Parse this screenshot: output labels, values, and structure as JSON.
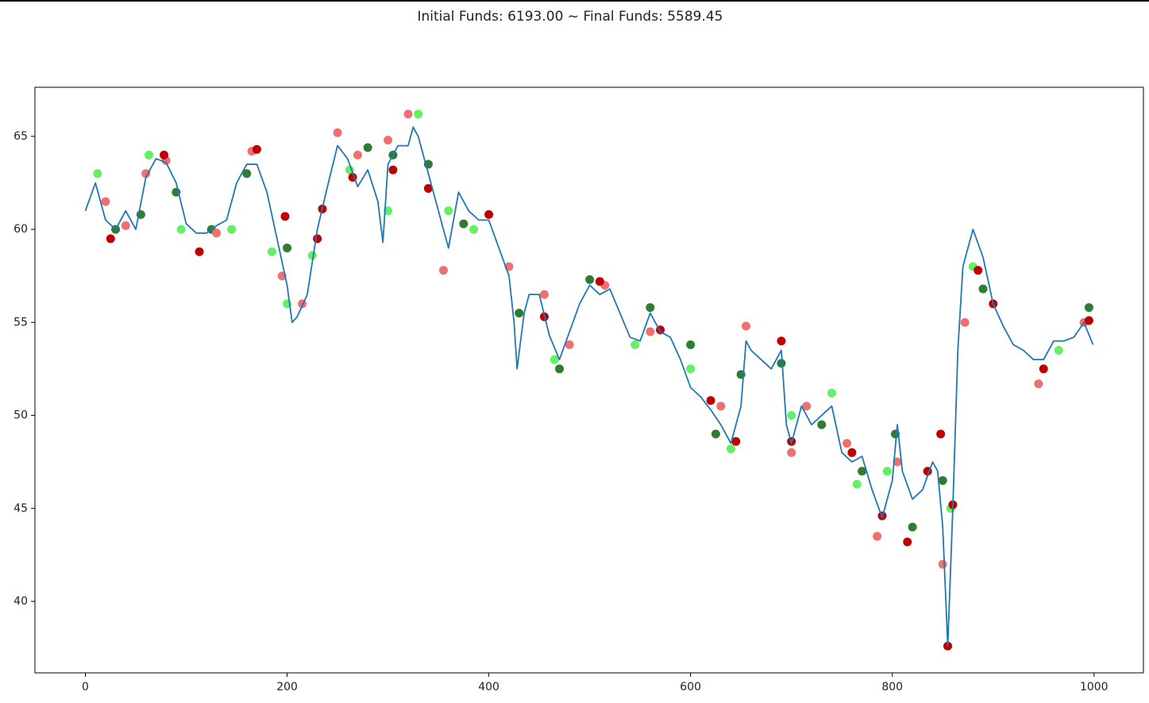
{
  "chart_data": {
    "type": "line",
    "title": "Initial Funds: 6193.00 ~ Final Funds: 5589.45",
    "xlim": [
      -50,
      1049
    ],
    "ylim": [
      36.16,
      67.64
    ],
    "xticks": [
      0,
      200,
      400,
      600,
      800,
      1000
    ],
    "yticks": [
      40,
      45,
      50,
      55,
      60,
      65
    ],
    "grid": false,
    "series": [
      {
        "type": "line",
        "color": "#1f77b4",
        "x": [
          0,
          10,
          20,
          30,
          40,
          50,
          60,
          70,
          80,
          90,
          100,
          110,
          120,
          130,
          140,
          150,
          160,
          170,
          180,
          190,
          200,
          205,
          210,
          220,
          230,
          240,
          250,
          260,
          270,
          280,
          290,
          295,
          300,
          310,
          320,
          325,
          330,
          340,
          350,
          360,
          370,
          380,
          390,
          400,
          410,
          420,
          425,
          428,
          435,
          440,
          450,
          460,
          470,
          480,
          490,
          500,
          510,
          520,
          530,
          540,
          550,
          560,
          570,
          580,
          590,
          600,
          610,
          620,
          630,
          640,
          650,
          655,
          660,
          670,
          680,
          690,
          695,
          700,
          710,
          720,
          730,
          740,
          750,
          760,
          770,
          780,
          790,
          800,
          805,
          810,
          820,
          830,
          840,
          845,
          850,
          855,
          860,
          865,
          870,
          880,
          890,
          900,
          910,
          920,
          930,
          940,
          950,
          960,
          970,
          980,
          990,
          999
        ],
        "values": [
          61.0,
          62.5,
          60.5,
          60.0,
          61.0,
          60.0,
          62.8,
          63.8,
          63.6,
          62.5,
          60.3,
          59.8,
          59.8,
          60.2,
          60.5,
          62.5,
          63.5,
          63.5,
          62.0,
          59.5,
          57.0,
          55.0,
          55.3,
          56.5,
          60.0,
          62.3,
          64.5,
          63.8,
          62.3,
          63.2,
          61.5,
          59.3,
          63.5,
          64.5,
          64.5,
          65.5,
          65.0,
          63.0,
          61.0,
          59.0,
          62.0,
          61.0,
          60.5,
          60.5,
          59.0,
          57.5,
          55.0,
          52.5,
          55.5,
          56.5,
          56.5,
          54.3,
          53.0,
          54.5,
          56.0,
          57.0,
          56.5,
          56.8,
          55.5,
          54.2,
          54.0,
          55.5,
          54.5,
          54.2,
          53.0,
          51.5,
          51.0,
          50.3,
          49.5,
          48.5,
          50.5,
          54.0,
          53.5,
          53.0,
          52.5,
          53.5,
          49.5,
          48.5,
          50.5,
          49.5,
          50.0,
          50.5,
          48.0,
          47.5,
          47.8,
          46.0,
          44.5,
          46.5,
          49.5,
          47.0,
          45.5,
          46.0,
          47.5,
          47.0,
          44.0,
          37.6,
          45.0,
          53.5,
          58.0,
          60.0,
          58.5,
          56.0,
          54.8,
          53.8,
          53.5,
          53.0,
          53.0,
          54.0,
          54.0,
          54.2,
          55.0,
          53.8
        ]
      },
      {
        "type": "scatter",
        "color": "#66ee66",
        "x": [
          12,
          63,
          95,
          145,
          185,
          200,
          225,
          262,
          300,
          330,
          360,
          385,
          465,
          545,
          600,
          640,
          700,
          740,
          765,
          795,
          858,
          880,
          965
        ],
        "values": [
          63.0,
          64.0,
          60.0,
          60.0,
          58.8,
          56.0,
          58.6,
          63.2,
          61.0,
          66.2,
          61.0,
          60.0,
          53.0,
          53.8,
          52.5,
          48.2,
          50.0,
          51.2,
          46.3,
          47.0,
          45.0,
          58.0,
          53.5
        ]
      },
      {
        "type": "scatter",
        "color": "#2e7d32",
        "x": [
          30,
          55,
          90,
          125,
          160,
          200,
          280,
          305,
          340,
          375,
          430,
          470,
          500,
          560,
          600,
          625,
          650,
          690,
          730,
          770,
          803,
          820,
          850,
          890,
          995
        ],
        "values": [
          60.0,
          60.8,
          62.0,
          60.0,
          63.0,
          59.0,
          64.4,
          64.0,
          63.5,
          60.3,
          55.5,
          52.5,
          57.3,
          55.8,
          53.8,
          49.0,
          52.2,
          52.8,
          49.5,
          47.0,
          49.0,
          44.0,
          46.5,
          56.8,
          55.8
        ]
      },
      {
        "type": "scatter",
        "color": "#f07070",
        "x": [
          20,
          40,
          60,
          80,
          130,
          165,
          195,
          215,
          250,
          270,
          300,
          320,
          355,
          420,
          455,
          480,
          515,
          560,
          630,
          655,
          700,
          715,
          755,
          785,
          805,
          850,
          872,
          945,
          990
        ],
        "values": [
          61.5,
          60.2,
          63.0,
          63.7,
          59.8,
          64.2,
          57.5,
          56.0,
          65.2,
          64.0,
          64.8,
          66.2,
          57.8,
          58.0,
          56.5,
          53.8,
          57.0,
          54.5,
          50.5,
          54.8,
          48.0,
          50.5,
          48.5,
          43.5,
          47.5,
          42.0,
          55.0,
          51.7,
          55.0
        ]
      },
      {
        "type": "scatter",
        "color": "#c00000",
        "x": [
          25,
          78,
          113,
          170,
          198,
          230,
          235,
          265,
          305,
          340,
          400,
          455,
          510,
          570,
          620,
          645,
          690,
          700,
          760,
          790,
          815,
          835,
          848,
          855,
          860,
          885,
          900,
          950,
          995
        ],
        "values": [
          59.5,
          64.0,
          58.8,
          64.3,
          60.7,
          59.5,
          61.1,
          62.8,
          63.2,
          62.2,
          60.8,
          55.3,
          57.2,
          54.6,
          50.8,
          48.6,
          54.0,
          48.6,
          48.0,
          44.6,
          43.2,
          47.0,
          49.0,
          37.6,
          45.2,
          57.8,
          56.0,
          52.5,
          55.1
        ]
      }
    ]
  }
}
